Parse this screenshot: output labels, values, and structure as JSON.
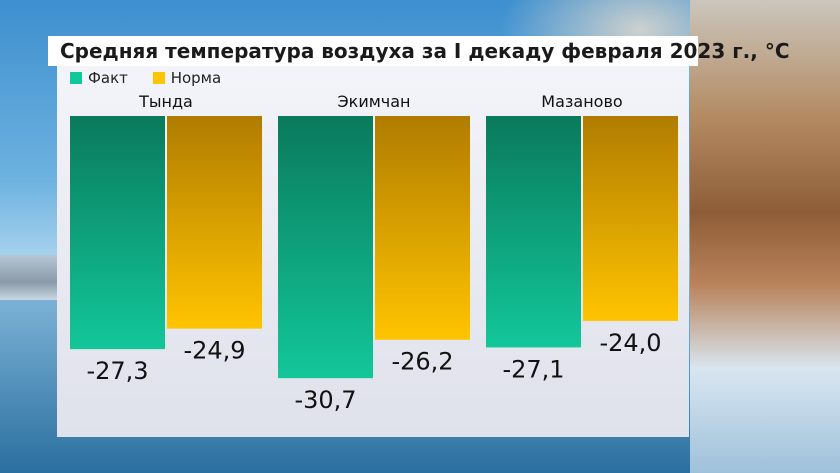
{
  "chart_data": {
    "type": "bar",
    "title": "Средняя температура воздуха за I декаду февраля 2023 г., °C",
    "categories": [
      "Тында",
      "Экимчан",
      "Мазаново"
    ],
    "series": [
      {
        "name": "Факт",
        "values": [
          -27.3,
          -30.7,
          -27.1
        ],
        "labels": [
          "-27,3",
          "-30,7",
          "-27,1"
        ]
      },
      {
        "name": "Норма",
        "values": [
          -24.9,
          -26.2,
          -24.0
        ],
        "labels": [
          "-24,9",
          "-26,2",
          "-24,0"
        ]
      }
    ],
    "ylim": [
      -35,
      0
    ],
    "grid": false,
    "legend": "top-left"
  },
  "colors": {
    "fact_top": "#0a7a5c",
    "fact_bottom": "#12c79a",
    "norm_top": "#b07c00",
    "norm_bottom": "#ffc400"
  }
}
